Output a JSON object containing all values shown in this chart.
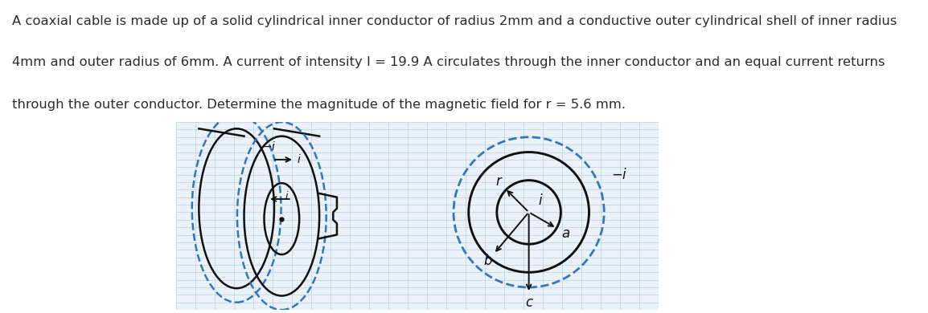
{
  "text_lines": [
    "A coaxial cable is made up of a solid cylindrical inner conductor of radius 2mm and a conductive outer cylindrical shell of inner radius",
    "4mm and outer radius of 6mm. A current of intensity I = 19.9 A circulates through the inner conductor and an equal current returns",
    "through the outer conductor. Determine the magnitude of the magnetic field for r = 5.6 mm."
  ],
  "text_color": "#2c2c2c",
  "text_fontsize": 11.8,
  "background_color": "#ffffff",
  "grid_color": "#b8cfe0",
  "dashed_color": "#3377bb",
  "line_color": "#111111",
  "fig_width": 11.54,
  "fig_height": 3.9
}
